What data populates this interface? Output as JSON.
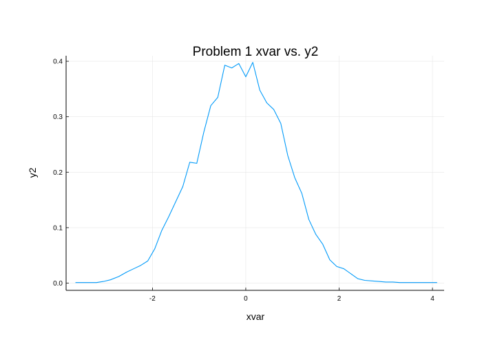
{
  "chart_data": {
    "type": "line",
    "title": "Problem 1 xvar vs. y2",
    "xlabel": "xvar",
    "ylabel": "y2",
    "xlim": [
      -3.85,
      4.25
    ],
    "ylim": [
      -0.013,
      0.41
    ],
    "grid": true,
    "legend": "none",
    "x_ticks": [
      -2,
      0,
      2,
      4
    ],
    "x_tick_labels": [
      "-2",
      "0",
      "2",
      "4"
    ],
    "y_ticks": [
      0.0,
      0.1,
      0.2,
      0.3,
      0.4
    ],
    "y_tick_labels": [
      "0.0",
      "0.1",
      "0.2",
      "0.3",
      "0.4"
    ],
    "series": [
      {
        "color": "#009AF9",
        "x": [
          -3.65,
          -3.2,
          -3.05,
          -2.9,
          -2.72,
          -2.55,
          -2.4,
          -2.25,
          -2.1,
          -1.95,
          -1.8,
          -1.65,
          -1.5,
          -1.35,
          -1.2,
          -1.05,
          -0.9,
          -0.75,
          -0.6,
          -0.45,
          -0.3,
          -0.15,
          0.0,
          0.15,
          0.3,
          0.45,
          0.6,
          0.75,
          0.9,
          1.05,
          1.2,
          1.35,
          1.5,
          1.65,
          1.8,
          1.95,
          2.1,
          2.25,
          2.4,
          2.55,
          2.7,
          2.85,
          3.0,
          3.15,
          3.3,
          3.45,
          3.6,
          3.75,
          3.9,
          4.1
        ],
        "y": [
          0.001,
          0.001,
          0.003,
          0.006,
          0.012,
          0.02,
          0.026,
          0.032,
          0.04,
          0.062,
          0.095,
          0.12,
          0.147,
          0.174,
          0.218,
          0.216,
          0.272,
          0.32,
          0.335,
          0.393,
          0.388,
          0.396,
          0.372,
          0.398,
          0.348,
          0.325,
          0.313,
          0.288,
          0.23,
          0.19,
          0.162,
          0.115,
          0.088,
          0.07,
          0.042,
          0.03,
          0.026,
          0.017,
          0.008,
          0.005,
          0.004,
          0.003,
          0.002,
          0.002,
          0.001,
          0.001,
          0.001,
          0.001,
          0.001,
          0.001
        ]
      }
    ]
  }
}
